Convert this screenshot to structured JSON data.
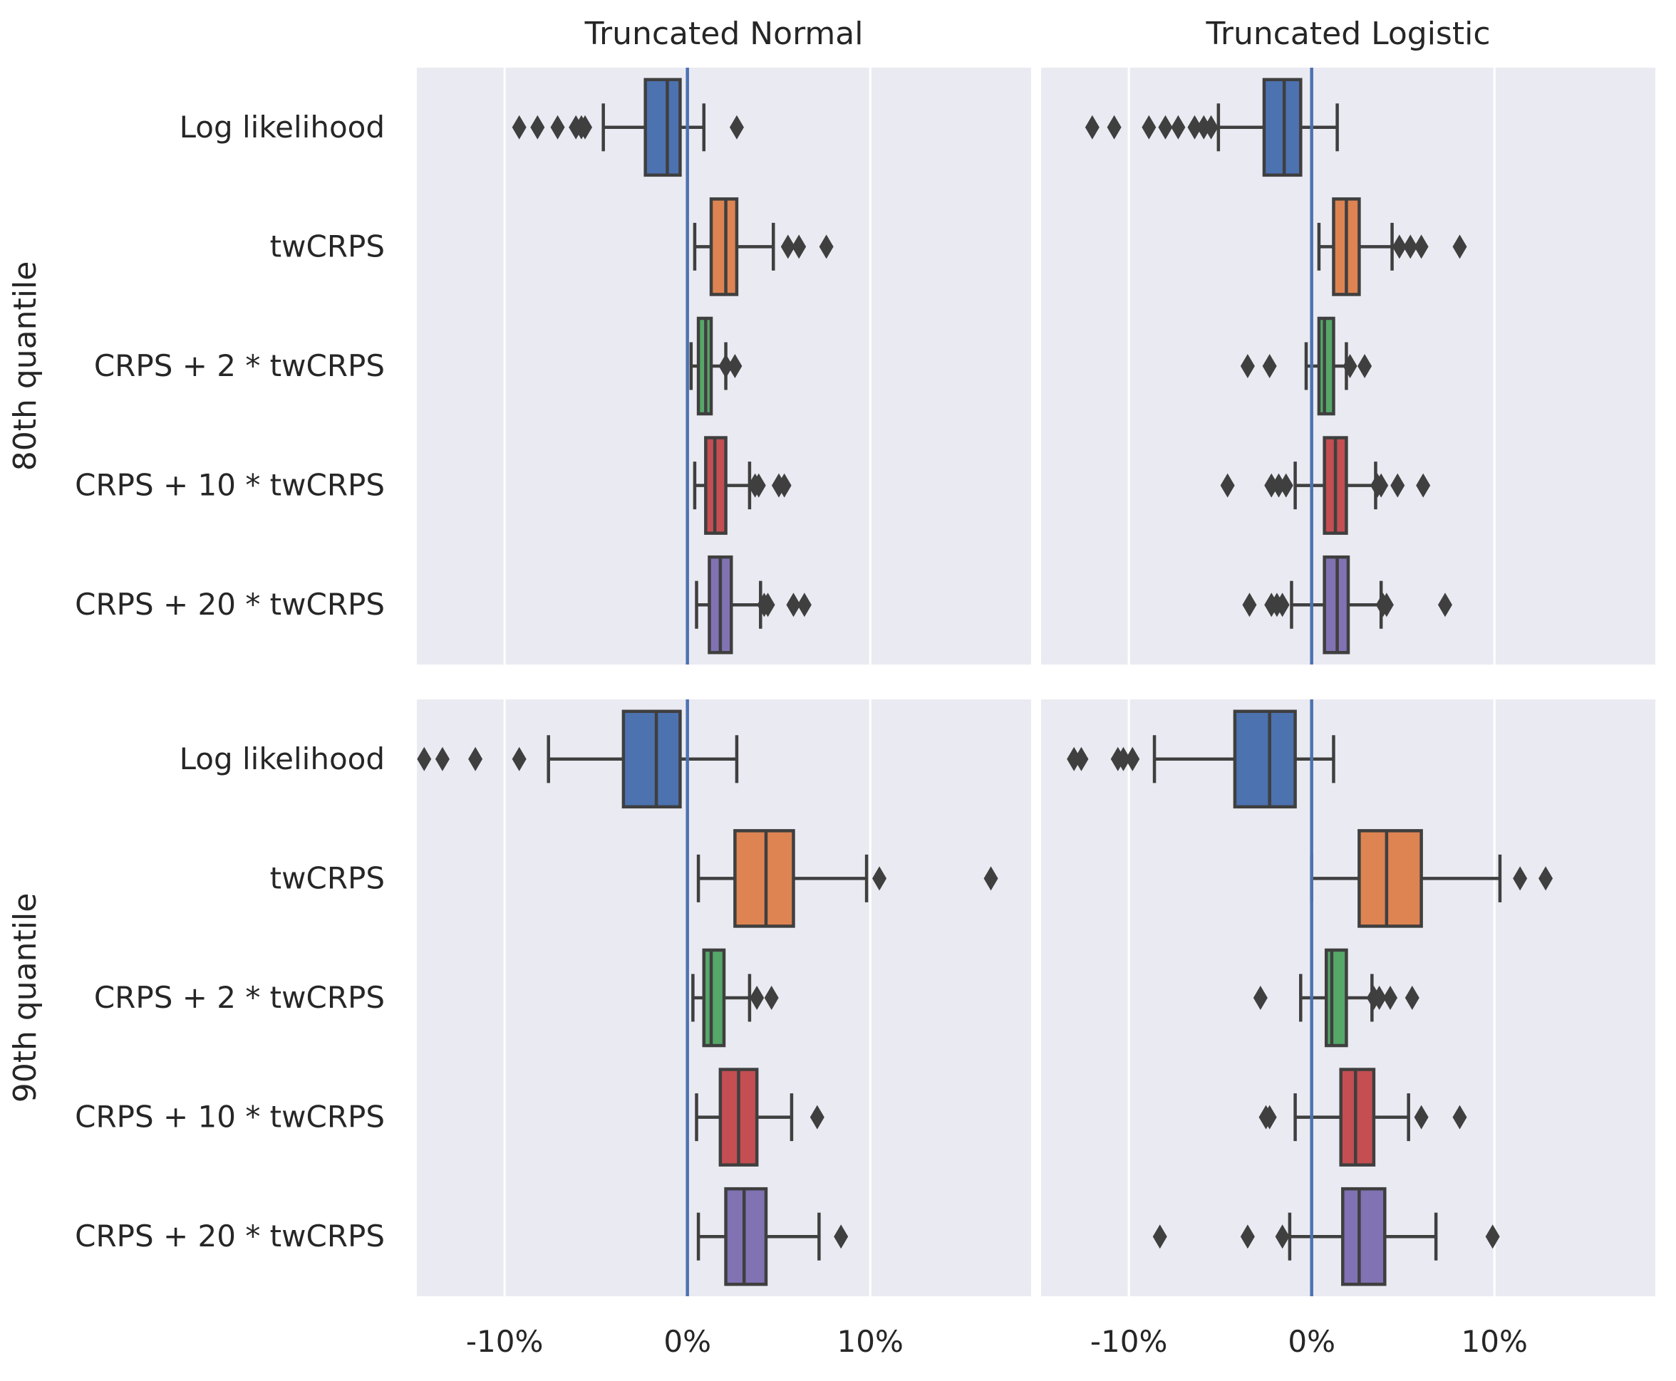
{
  "chart_data": {
    "type": "boxplot",
    "orientation": "horizontal",
    "col_titles": [
      "Truncated Normal",
      "Truncated Logistic"
    ],
    "row_titles": [
      "80th quantile",
      "90th quantile"
    ],
    "categories": [
      "Log likelihood",
      "twCRPS",
      "CRPS + 2 * twCRPS",
      "CRPS + 10 * twCRPS",
      "CRPS + 20 * twCRPS"
    ],
    "x_ticks": [
      -10,
      0,
      10
    ],
    "x_tick_labels": [
      "-10%",
      "0%",
      "10%"
    ],
    "xlim": [
      -14.8,
      18.8
    ],
    "reference_line_x": 0,
    "grid": true,
    "colors": {
      "background": "#eaeaf2",
      "grid": "#ffffff",
      "reference_line": "#4c72b0",
      "outline": "#3f3f3f",
      "boxes": [
        "#4c72b0",
        "#dd8452",
        "#55a868",
        "#c44e52",
        "#8172b3"
      ]
    },
    "panels": [
      {
        "row": 0,
        "col": 0,
        "boxes": [
          {
            "whisker_low": -4.6,
            "q1": -2.3,
            "median": -1.1,
            "q3": -0.4,
            "whisker_high": 0.9,
            "outliers": [
              -9.2,
              -8.2,
              -7.1,
              -6.1,
              -5.8,
              -5.6,
              2.7
            ]
          },
          {
            "whisker_low": 0.4,
            "q1": 1.3,
            "median": 2.1,
            "q3": 2.7,
            "whisker_high": 4.7,
            "outliers": [
              5.5,
              6.1,
              7.6
            ]
          },
          {
            "whisker_low": 0.2,
            "q1": 0.6,
            "median": 1.0,
            "q3": 1.3,
            "whisker_high": 2.1,
            "outliers": [
              2.1,
              2.6
            ]
          },
          {
            "whisker_low": 0.4,
            "q1": 1.0,
            "median": 1.5,
            "q3": 2.1,
            "whisker_high": 3.4,
            "outliers": [
              3.7,
              3.9,
              5.0,
              5.3
            ]
          },
          {
            "whisker_low": 0.5,
            "q1": 1.2,
            "median": 1.8,
            "q3": 2.4,
            "whisker_high": 4.0,
            "outliers": [
              4.2,
              4.4,
              5.8,
              6.4
            ]
          }
        ]
      },
      {
        "row": 0,
        "col": 1,
        "boxes": [
          {
            "whisker_low": -5.1,
            "q1": -2.6,
            "median": -1.5,
            "q3": -0.6,
            "whisker_high": 1.4,
            "outliers": [
              -12.0,
              -10.8,
              -8.9,
              -8.0,
              -7.3,
              -6.4,
              -5.9,
              -5.5
            ]
          },
          {
            "whisker_low": 0.4,
            "q1": 1.2,
            "median": 1.9,
            "q3": 2.6,
            "whisker_high": 4.4,
            "outliers": [
              4.8,
              5.4,
              6.0,
              8.1
            ]
          },
          {
            "whisker_low": -0.3,
            "q1": 0.4,
            "median": 0.7,
            "q3": 1.2,
            "whisker_high": 1.9,
            "outliers": [
              -3.5,
              -2.3,
              2.1,
              2.9
            ]
          },
          {
            "whisker_low": -0.9,
            "q1": 0.7,
            "median": 1.3,
            "q3": 1.9,
            "whisker_high": 3.5,
            "outliers": [
              -4.6,
              -2.2,
              -1.8,
              -1.4,
              3.6,
              3.8,
              4.7,
              6.1
            ]
          },
          {
            "whisker_low": -1.1,
            "q1": 0.7,
            "median": 1.4,
            "q3": 2.0,
            "whisker_high": 3.8,
            "outliers": [
              -3.4,
              -2.2,
              -1.9,
              -1.6,
              3.9,
              4.1,
              7.3
            ]
          }
        ]
      },
      {
        "row": 1,
        "col": 0,
        "boxes": [
          {
            "whisker_low": -7.6,
            "q1": -3.5,
            "median": -1.7,
            "q3": -0.4,
            "whisker_high": 2.7,
            "outliers": [
              -14.4,
              -13.4,
              -11.6,
              -9.2
            ]
          },
          {
            "whisker_low": 0.6,
            "q1": 2.6,
            "median": 4.3,
            "q3": 5.8,
            "whisker_high": 9.8,
            "outliers": [
              10.5,
              16.6
            ]
          },
          {
            "whisker_low": 0.3,
            "q1": 0.9,
            "median": 1.3,
            "q3": 2.0,
            "whisker_high": 3.4,
            "outliers": [
              3.8,
              4.6
            ]
          },
          {
            "whisker_low": 0.5,
            "q1": 1.8,
            "median": 2.8,
            "q3": 3.8,
            "whisker_high": 5.7,
            "outliers": [
              7.1
            ]
          },
          {
            "whisker_low": 0.6,
            "q1": 2.1,
            "median": 3.1,
            "q3": 4.3,
            "whisker_high": 7.2,
            "outliers": [
              8.4
            ]
          }
        ]
      },
      {
        "row": 1,
        "col": 1,
        "boxes": [
          {
            "whisker_low": -8.6,
            "q1": -4.2,
            "median": -2.3,
            "q3": -0.9,
            "whisker_high": 1.2,
            "outliers": [
              -13.0,
              -12.6,
              -10.6,
              -10.3,
              -9.8
            ]
          },
          {
            "whisker_low": 0.0,
            "q1": 2.6,
            "median": 4.1,
            "q3": 6.0,
            "whisker_high": 10.3,
            "outliers": [
              11.4,
              12.8
            ]
          },
          {
            "whisker_low": -0.6,
            "q1": 0.8,
            "median": 1.1,
            "q3": 1.9,
            "whisker_high": 3.3,
            "outliers": [
              -2.8,
              3.4,
              3.7,
              4.3,
              5.5
            ]
          },
          {
            "whisker_low": -0.9,
            "q1": 1.6,
            "median": 2.4,
            "q3": 3.4,
            "whisker_high": 5.3,
            "outliers": [
              -2.5,
              -2.3,
              6.0,
              8.1
            ]
          },
          {
            "whisker_low": -1.2,
            "q1": 1.7,
            "median": 2.6,
            "q3": 4.0,
            "whisker_high": 6.8,
            "outliers": [
              -8.3,
              -3.5,
              -1.6,
              9.9
            ]
          }
        ]
      }
    ]
  }
}
